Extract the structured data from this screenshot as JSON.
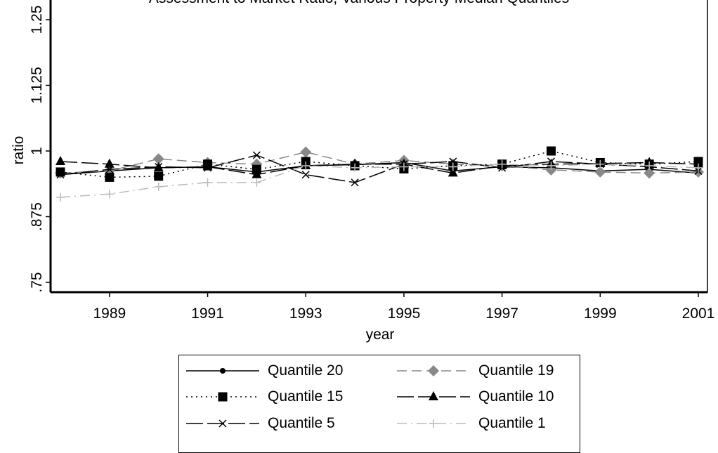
{
  "chart_data": {
    "type": "line",
    "title": "Assessment to Market Ratio, Various Property Median Quantiles",
    "xlabel": "year",
    "ylabel": "ratio",
    "xlim": [
      1988,
      2001
    ],
    "ylim": [
      0.75,
      1.25
    ],
    "x_ticks": [
      1989,
      1991,
      1993,
      1995,
      1997,
      1999,
      2001
    ],
    "y_ticks": [
      ".75",
      ".875",
      "1",
      "1.125",
      "1.25"
    ],
    "grid": false,
    "legend_position": "bottom",
    "x": [
      1988,
      1989,
      1990,
      1991,
      1992,
      1993,
      1994,
      1995,
      1996,
      1997,
      1998,
      1999,
      2000,
      2001
    ],
    "series": [
      {
        "name": "Quantile 20",
        "color": "#000000",
        "dash": "solid",
        "marker": "dot",
        "values": [
          0.955,
          0.962,
          0.968,
          0.97,
          0.96,
          0.972,
          0.974,
          0.978,
          0.962,
          0.97,
          0.968,
          0.962,
          0.965,
          0.958
        ]
      },
      {
        "name": "Quantile 19",
        "color": "#888888",
        "dash": "dash",
        "marker": "diamond",
        "values": [
          0.958,
          0.962,
          0.985,
          0.978,
          0.975,
          0.998,
          0.975,
          0.982,
          0.975,
          0.972,
          0.964,
          0.96,
          0.958,
          0.96
        ]
      },
      {
        "name": "Quantile 15",
        "color": "#000000",
        "dash": "dot",
        "marker": "square",
        "values": [
          0.96,
          0.95,
          0.952,
          0.975,
          0.965,
          0.98,
          0.972,
          0.966,
          0.972,
          0.975,
          1.0,
          0.978,
          0.975,
          0.98
        ]
      },
      {
        "name": "Quantile 10",
        "color": "#000000",
        "dash": "longdash",
        "marker": "triangle",
        "values": [
          0.98,
          0.975,
          0.968,
          0.97,
          0.955,
          0.972,
          0.975,
          0.975,
          0.958,
          0.972,
          0.975,
          0.976,
          0.978,
          0.975
        ]
      },
      {
        "name": "Quantile 5",
        "color": "#000000",
        "dash": "longdash",
        "marker": "x",
        "values": [
          0.955,
          0.965,
          0.97,
          0.968,
          0.992,
          0.955,
          0.94,
          0.975,
          0.98,
          0.968,
          0.98,
          0.975,
          0.97,
          0.962
        ]
      },
      {
        "name": "Quantile 1",
        "color": "#bbbbbb",
        "dash": "dashdot",
        "marker": "plus",
        "values": [
          0.912,
          0.918,
          0.932,
          0.94,
          0.94,
          0.972,
          0.968,
          0.97,
          0.97,
          0.975,
          0.972,
          0.975,
          0.972,
          0.968
        ]
      }
    ]
  }
}
